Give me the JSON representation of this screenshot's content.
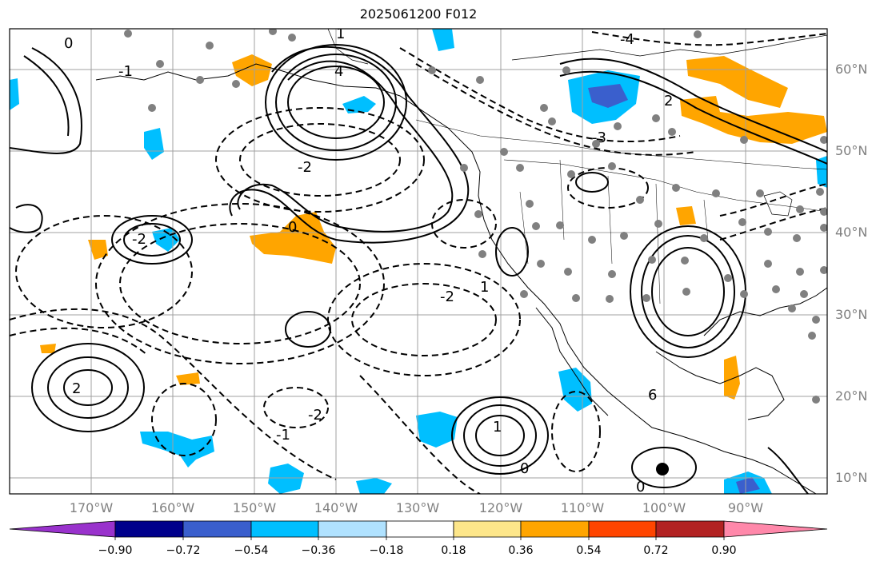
{
  "title": "2025061200 F012",
  "map": {
    "lat_labels": [
      "60°N",
      "50°N",
      "40°N",
      "30°N",
      "20°N",
      "10°N"
    ],
    "lon_labels": [
      "170°W",
      "160°W",
      "150°W",
      "140°W",
      "130°W",
      "120°W",
      "110°W",
      "100°W",
      "90°W"
    ],
    "contour_labels": [
      "0",
      "1",
      "-1",
      "-2",
      "2",
      "-3",
      "-4",
      "4",
      "6",
      "-2",
      "2",
      "0",
      "1",
      "-1",
      "-2",
      "0",
      "-2",
      "1",
      "0"
    ],
    "colors": {
      "positive_contour": "#000000",
      "negative_contour": "#000000",
      "land_outline": "#000000",
      "grid": "#a0a0a0",
      "stations": "#808080"
    }
  },
  "colorbar": {
    "ticks": [
      "−0.90",
      "−0.72",
      "−0.54",
      "−0.36",
      "−0.18",
      "0.18",
      "0.36",
      "0.54",
      "0.72",
      "0.90"
    ],
    "colors": [
      "#9932cc",
      "#00008b",
      "#3a5fcd",
      "#00bfff",
      "#b0e2ff",
      "#ffffff",
      "#fde68a",
      "#ffa500",
      "#ff4500",
      "#b22222",
      "#ff88aa"
    ]
  }
}
